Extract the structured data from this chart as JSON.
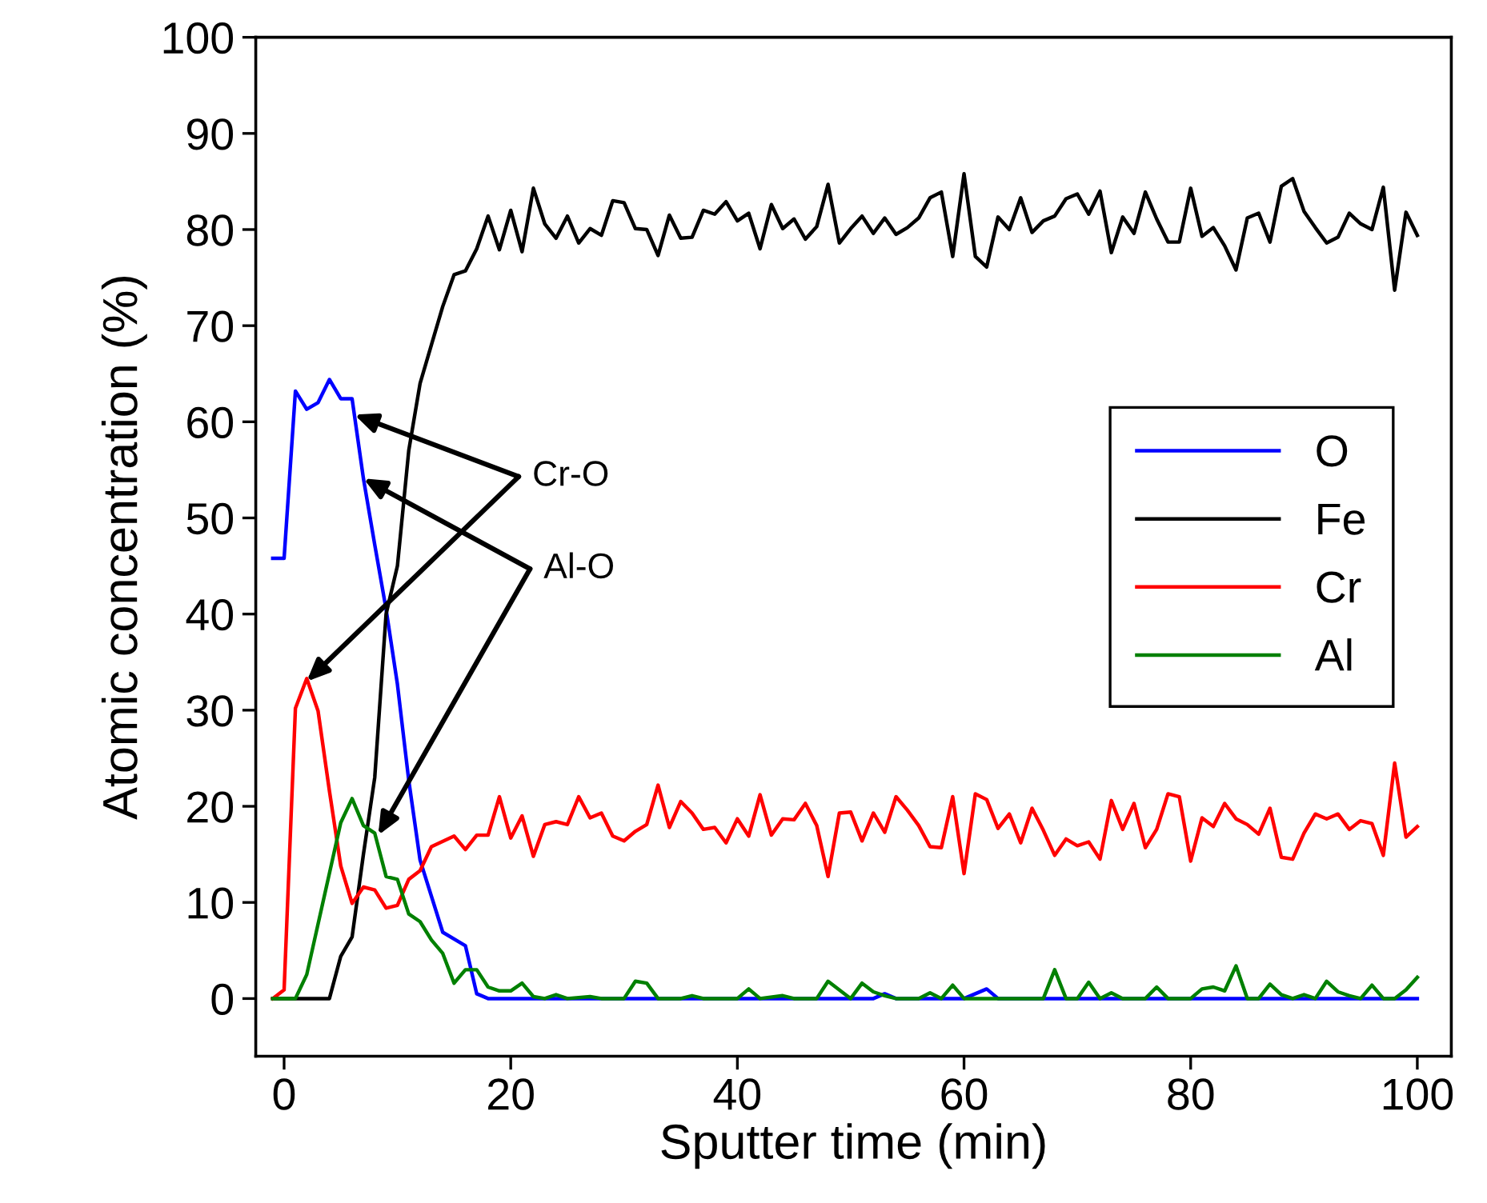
{
  "chart_data": {
    "type": "line",
    "xlabel": "Sputter time (min)",
    "ylabel": "Atomic concentration (%)",
    "xlim": [
      -2.5,
      103
    ],
    "ylim": [
      -6,
      100
    ],
    "xticks": [
      0,
      20,
      40,
      60,
      80,
      100
    ],
    "yticks": [
      0,
      10,
      20,
      30,
      40,
      50,
      60,
      70,
      80,
      90,
      100
    ],
    "grid": false,
    "legend": "right",
    "marker": "none",
    "line_style": "solid",
    "series": [
      {
        "name": "O",
        "color": "#0000ff",
        "x": [
          -1,
          0,
          1,
          2,
          3,
          4,
          5,
          6,
          7,
          8,
          9,
          10,
          11,
          12,
          14,
          16,
          17,
          18,
          20,
          40,
          52,
          53,
          54,
          60,
          62,
          63,
          100
        ],
        "values": [
          45.8,
          45.8,
          63.2,
          61.3,
          62,
          64.4,
          62.4,
          62.4,
          54.1,
          47.2,
          40.5,
          32.7,
          22.7,
          14.4,
          6.9,
          5.5,
          0.5,
          0,
          0,
          0,
          0,
          0.5,
          0,
          0,
          1.0,
          0,
          0
        ]
      },
      {
        "name": "Fe",
        "color": "#000000",
        "x": [
          -1,
          0,
          4,
          5,
          6,
          7,
          8,
          9,
          10,
          11,
          12,
          13,
          14,
          15,
          16,
          17,
          18,
          19,
          20,
          21,
          22,
          23,
          24,
          25,
          26,
          27,
          28,
          29,
          30,
          31,
          32,
          33,
          34,
          35,
          36,
          37,
          38,
          39,
          40,
          41,
          42,
          43,
          44,
          45,
          46,
          47,
          48,
          49,
          50,
          51,
          52,
          53,
          54,
          55,
          56,
          57,
          58,
          59,
          60,
          61,
          62,
          63,
          64,
          65,
          66,
          67,
          68,
          69,
          70,
          71,
          72,
          73,
          74,
          75,
          76,
          77,
          78,
          79,
          80,
          81,
          82,
          83,
          84,
          85,
          86,
          87,
          88,
          89,
          90,
          91,
          92,
          93,
          94,
          95,
          96,
          97,
          98,
          99,
          100
        ],
        "values": [
          0,
          0,
          0,
          4.4,
          6.4,
          15,
          23,
          40,
          45,
          57,
          64,
          68,
          72,
          75.3,
          75.7,
          78,
          81.4,
          77.9,
          82,
          77.7,
          84.3,
          80.6,
          79.1,
          81.4,
          78.6,
          80.1,
          79.4,
          83,
          82.8,
          80.1,
          80,
          77.3,
          81.5,
          79.1,
          79.2,
          82,
          81.6,
          82.9,
          80.9,
          81.7,
          78,
          82.6,
          80.1,
          81.1,
          79,
          80.3,
          84.7,
          78.6,
          80.1,
          81.4,
          79.6,
          81.2,
          79.5,
          80.2,
          81.2,
          83.3,
          83.9,
          77.2,
          85.8,
          77.2,
          76.1,
          81.3,
          80,
          83.3,
          79.7,
          80.9,
          81.4,
          83.2,
          83.7,
          81.6,
          84,
          77.6,
          81.3,
          79.6,
          83.9,
          81.1,
          78.7,
          78.7,
          84.3,
          79.3,
          80.2,
          78.3,
          75.8,
          81.2,
          81.7,
          78.7,
          84.5,
          85.3,
          81.9,
          80.2,
          78.6,
          79.2,
          81.7,
          80.6,
          80,
          84.4,
          73.7,
          81.8,
          79.4
        ]
      },
      {
        "name": "Cr",
        "color": "#ff0000",
        "x": [
          -1,
          0,
          1,
          2,
          3,
          4,
          5,
          6,
          7,
          8,
          9,
          10,
          11,
          12,
          13,
          15,
          16,
          17,
          18,
          19,
          20,
          21,
          22,
          23,
          24,
          25,
          26,
          27,
          28,
          29,
          30,
          31,
          32,
          33,
          34,
          35,
          36,
          37,
          38,
          39,
          40,
          41,
          42,
          43,
          44,
          45,
          46,
          47,
          48,
          49,
          50,
          51,
          52,
          53,
          54,
          55,
          56,
          57,
          58,
          59,
          60,
          61,
          62,
          63,
          64,
          65,
          66,
          67,
          68,
          69,
          70,
          71,
          72,
          73,
          74,
          75,
          76,
          77,
          78,
          79,
          80,
          81,
          82,
          83,
          84,
          85,
          86,
          87,
          88,
          89,
          90,
          91,
          92,
          93,
          94,
          95,
          96,
          97,
          98,
          99,
          100
        ],
        "values": [
          0,
          0.9,
          30.2,
          33.3,
          29.9,
          21.6,
          13.8,
          9.9,
          11.6,
          11.3,
          9.4,
          9.7,
          12.4,
          13.3,
          15.8,
          16.9,
          15.5,
          17,
          17,
          21,
          16.7,
          19,
          14.8,
          18.1,
          18.4,
          18.1,
          21,
          18.8,
          19.3,
          16.9,
          16.4,
          17.4,
          18.1,
          22.2,
          17.8,
          20.5,
          19.3,
          17.6,
          17.8,
          16.2,
          18.7,
          16.9,
          21.2,
          17,
          18.7,
          18.6,
          20.3,
          18,
          12.7,
          19.3,
          19.4,
          16.4,
          19.3,
          17.3,
          21,
          19.6,
          18,
          15.8,
          15.7,
          21,
          13,
          21.3,
          20.7,
          17.7,
          19.2,
          16.2,
          19.8,
          17.5,
          14.9,
          16.6,
          15.9,
          16.3,
          14.5,
          20.6,
          17.6,
          20.3,
          15.7,
          17.6,
          21.3,
          21,
          14.3,
          18.8,
          17.9,
          20.3,
          18.7,
          18.1,
          17.1,
          19.8,
          14.7,
          14.5,
          17.2,
          19.2,
          18.7,
          19.2,
          17.6,
          18.5,
          18.2,
          14.9,
          24.5,
          16.8,
          17.9
        ]
      },
      {
        "name": "Al",
        "color": "#008000",
        "x": [
          -1,
          0,
          1,
          2,
          5,
          6,
          7,
          8,
          9,
          10,
          11,
          12,
          13,
          14,
          15,
          16,
          17,
          18,
          19,
          20,
          21,
          22,
          23,
          24,
          25,
          27,
          28,
          30,
          31,
          32,
          33,
          35,
          36,
          37,
          40,
          41,
          42,
          44,
          45,
          47,
          48,
          50,
          51,
          52,
          53,
          54,
          56,
          57,
          58,
          59,
          60,
          67,
          68,
          69,
          70,
          71,
          72,
          73,
          74,
          76,
          77,
          78,
          80,
          81,
          82,
          83,
          84,
          85,
          86,
          87,
          88,
          89,
          90,
          91,
          92,
          93,
          94,
          95,
          96,
          97,
          98,
          99,
          100
        ],
        "values": [
          0,
          0,
          0,
          2.5,
          18.3,
          20.8,
          18,
          17.2,
          12.7,
          12.4,
          8.8,
          8,
          6.1,
          4.7,
          1.6,
          3,
          3,
          1.2,
          0.8,
          0.8,
          1.6,
          0.2,
          0,
          0.4,
          0,
          0.2,
          0,
          0,
          1.8,
          1.6,
          0,
          0,
          0.3,
          0,
          0,
          1,
          0,
          0.3,
          0,
          0,
          1.8,
          0,
          1.6,
          0.7,
          0.3,
          0,
          0,
          0.6,
          0,
          1.4,
          0,
          0,
          3,
          0,
          0,
          1.7,
          0,
          0.6,
          0,
          0,
          1.2,
          0,
          0,
          1,
          1.2,
          0.8,
          3.4,
          0,
          0,
          1.5,
          0.4,
          0,
          0.4,
          0,
          1.8,
          0.7,
          0.3,
          0,
          1.4,
          0,
          0,
          0.9,
          2.2
        ]
      }
    ],
    "annotations": [
      {
        "text": "Cr-O",
        "x": 2,
        "y": 33
      },
      {
        "text": "Al-O",
        "x": 8.3,
        "y": 17
      }
    ]
  }
}
